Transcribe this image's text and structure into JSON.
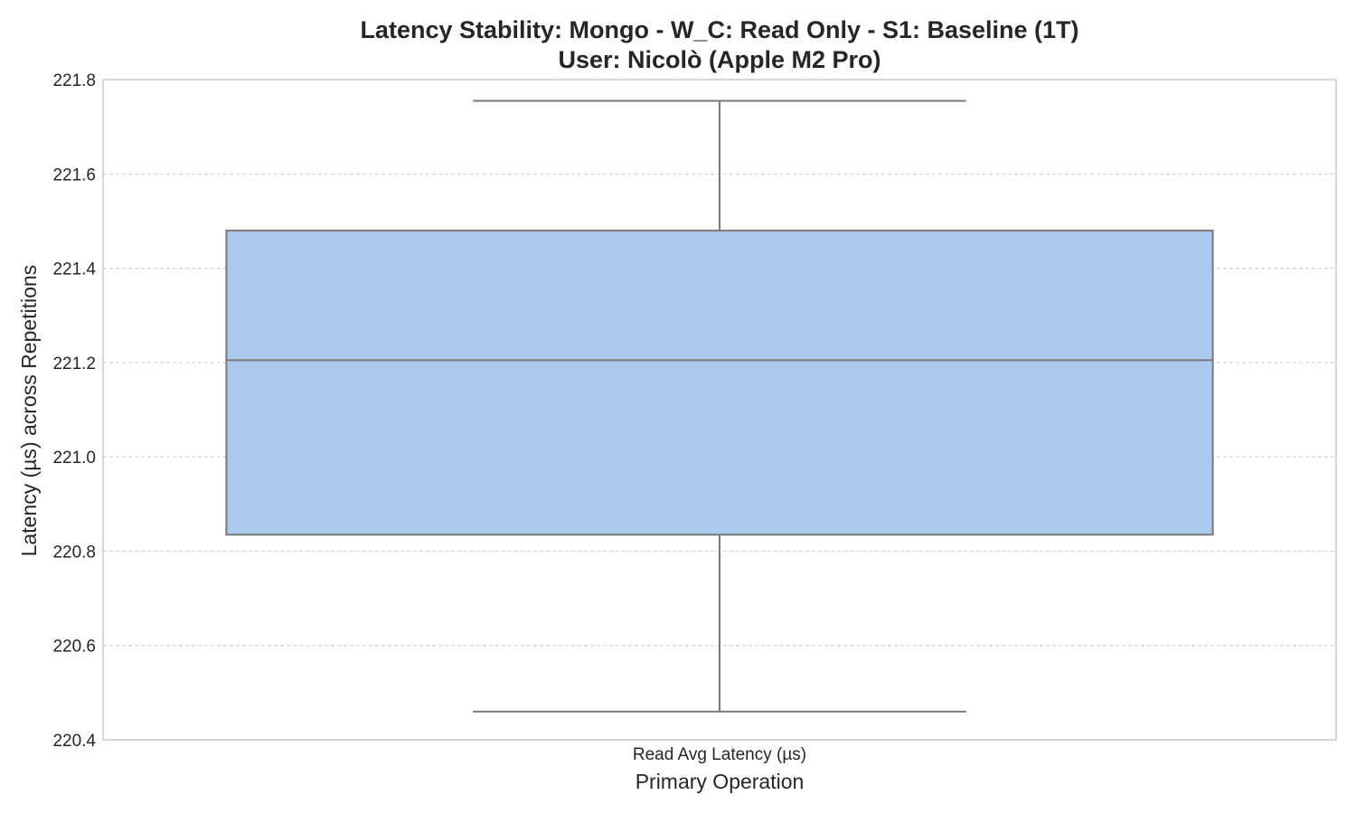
{
  "chart_data": {
    "type": "box",
    "title": "Latency Stability: Mongo - W_C: Read Only - S1: Baseline (1T)",
    "subtitle": "User: Nicolò (Apple M2 Pro)",
    "xlabel": "Primary Operation",
    "ylabel": "Latency (µs) across Repetitions",
    "ylim": [
      220.4,
      221.8
    ],
    "yticks": [
      220.4,
      220.6,
      220.8,
      221.0,
      221.2,
      221.4,
      221.6,
      221.8
    ],
    "ytick_labels": [
      "220.4",
      "220.6",
      "220.8",
      "221.0",
      "221.2",
      "221.4",
      "221.6",
      "221.8"
    ],
    "grid": true,
    "categories": [
      "Read Avg Latency (µs)"
    ],
    "boxes": [
      {
        "category": "Read Avg Latency (µs)",
        "whisker_low": 220.46,
        "q1": 220.835,
        "median": 221.205,
        "q3": 221.48,
        "whisker_high": 221.755
      }
    ],
    "colors": {
      "box_fill": "#abc8ed",
      "box_edge": "#7a7a7a",
      "grid": "#cccccc",
      "frame": "#cccccc",
      "text": "#262626"
    }
  }
}
